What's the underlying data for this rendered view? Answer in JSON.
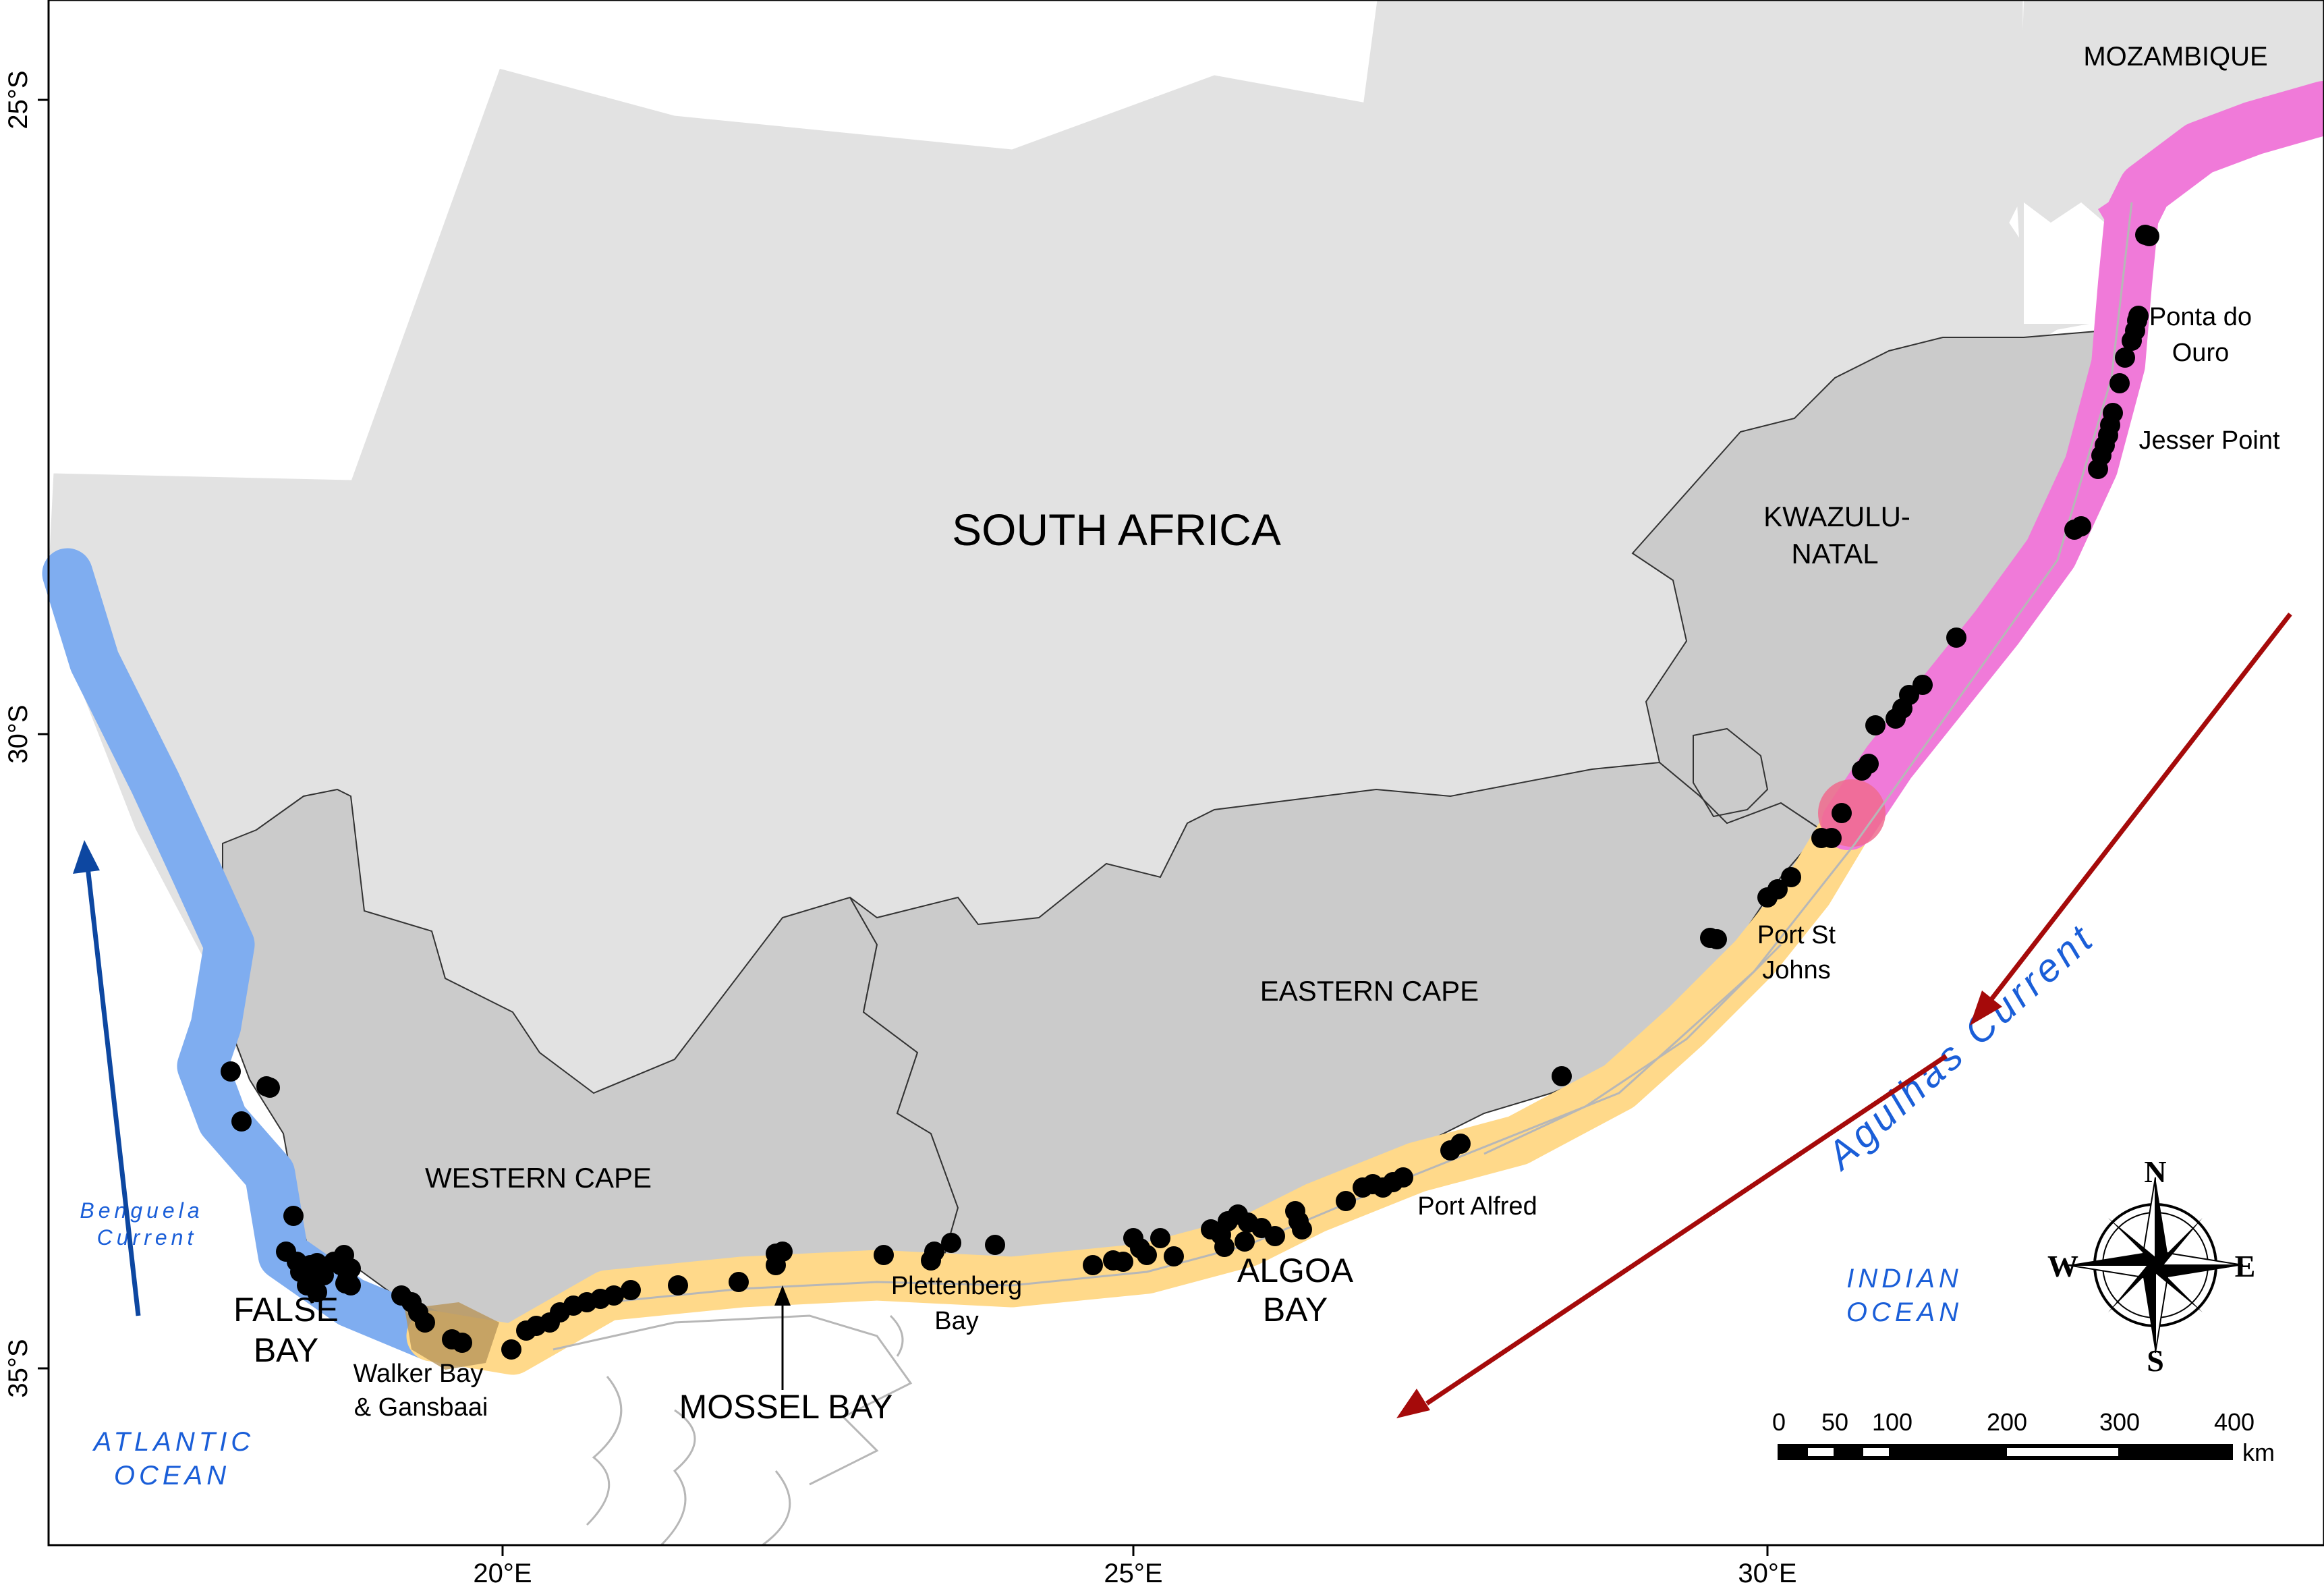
{
  "map": {
    "country_label": "SOUTH AFRICA",
    "neighbour_label": "MOZAMBIQUE",
    "provinces": {
      "western_cape": "WESTERN CAPE",
      "eastern_cape": "EASTERN CAPE",
      "kwazulu_natal_line1": "KWAZULU-",
      "kwazulu_natal_line2": "NATAL"
    },
    "places": {
      "false_bay_line1": "FALSE",
      "false_bay_line2": "BAY",
      "walker_bay_line1": "Walker Bay",
      "walker_bay_line2": "& Gansbaai",
      "mossel_bay": "MOSSEL BAY",
      "plettenberg_line1": "Plettenberg",
      "plettenberg_line2": "Bay",
      "algoa_line1": "ALGOA",
      "algoa_line2": "BAY",
      "port_alfred": "Port Alfred",
      "port_st_johns_line1": "Port St",
      "port_st_johns_line2": "Johns",
      "jesser_point": "Jesser Point",
      "ponta_line1": "Ponta do",
      "ponta_line2": "Ouro"
    },
    "oceans": {
      "atlantic_line1": "ATLANTIC",
      "atlantic_line2": "OCEAN",
      "indian_line1": "INDIAN",
      "indian_line2": "OCEAN"
    },
    "currents": {
      "benguela_line1": "Benguela",
      "benguela_line2": "Current",
      "agulhas": "Agulhas Current"
    },
    "axes": {
      "lat_ticks": [
        "25°S",
        "30°S",
        "35°S"
      ],
      "lon_ticks": [
        "20°E",
        "25°E",
        "30°E"
      ]
    },
    "compass": {
      "n": "N",
      "e": "E",
      "s": "S",
      "w": "W"
    },
    "scale_bar": {
      "labels": [
        "0",
        "50",
        "100",
        "200",
        "300",
        "400"
      ],
      "unit": "km"
    },
    "colors": {
      "land_other": "#e2e2e2",
      "land_provinces": "#cbcbcb",
      "benguela_zone": "#7fadf0",
      "agulhas_zone": "#ffd98a",
      "natal_zone": "#f07ad9",
      "overlap_zone": "#f06b8e",
      "points": "#000000",
      "current_red": "#a50a0a",
      "current_blue": "#0d47a1",
      "ocean_text": "#1a5ed8"
    }
  }
}
